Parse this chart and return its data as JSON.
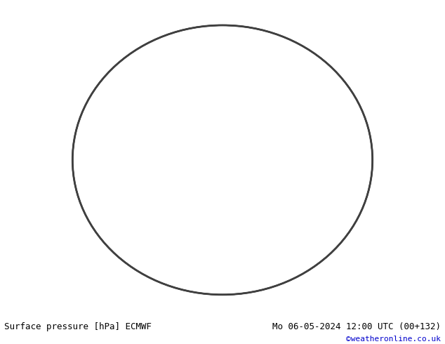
{
  "title_left": "Surface pressure [hPa] ECMWF",
  "title_right": "Mo 06-05-2024 12:00 UTC (00+132)",
  "copyright": "©weatheronline.co.uk",
  "bg_color": "#ffffff",
  "map_bg_color": "#c8e8f8",
  "land_color": "#c8f0a0",
  "border_color": "#808080",
  "text_color_black": "#000000",
  "text_color_blue": "#0000cc",
  "text_color_red": "#cc0000",
  "contour_color_black": "#000000",
  "contour_color_blue": "#0000cc",
  "contour_color_red": "#cc0000",
  "footer_bg": "#ffffff",
  "label_fontsize": 7,
  "footer_fontsize": 9,
  "copyright_color": "#0000cc"
}
